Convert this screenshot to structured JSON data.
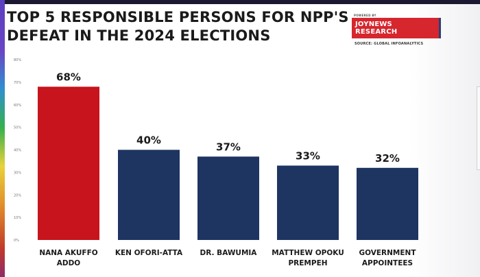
{
  "header": {
    "title_line1": "TOP 5 RESPONSIBLE PERSONS FOR NPP'S",
    "title_line2": "DEFEAT IN THE 2024 ELECTIONS"
  },
  "brand": {
    "powered_by": "POWERED BY",
    "name": "JOYNEWS RESEARCH",
    "source": "SOURCE: GLOBAL INFOANALYTICS"
  },
  "colors": {
    "highlight": "#c8141c",
    "bar": "#1e3461",
    "accent": "#d6262e"
  },
  "chart_data": {
    "type": "bar",
    "title": "TOP 5 RESPONSIBLE PERSONS FOR NPP'S DEFEAT IN THE 2024 ELECTIONS",
    "categories": [
      [
        "NANA AKUFFO",
        "ADDO"
      ],
      [
        "KEN OFORI-ATTA"
      ],
      [
        "DR. BAWUMIA"
      ],
      [
        "MATTHEW OPOKU",
        "PREMPEH"
      ],
      [
        "GOVERNMENT",
        "APPOINTEES"
      ]
    ],
    "values": [
      68,
      40,
      37,
      33,
      32
    ],
    "value_labels": [
      "68%",
      "40%",
      "37%",
      "33%",
      "32%"
    ],
    "ylim": [
      0,
      80
    ],
    "yticks": [
      0,
      10,
      20,
      30,
      40,
      50,
      60,
      70,
      80
    ],
    "ytick_labels": [
      "0%",
      "10%",
      "20%",
      "30%",
      "40%",
      "50%",
      "60%",
      "70%",
      "80%"
    ],
    "highlight_index": 0,
    "grid": false,
    "legend": "none"
  }
}
